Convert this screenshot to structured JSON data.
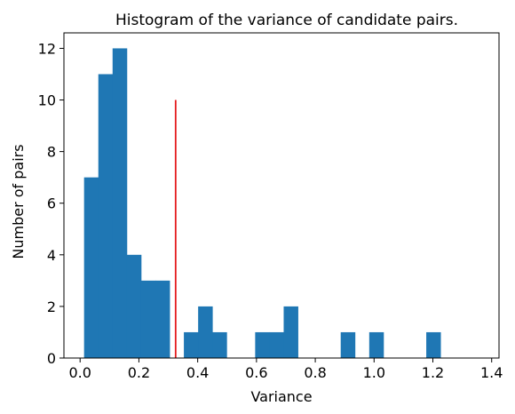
{
  "chart_data": {
    "type": "bar",
    "title": "Histogram of the variance of candidate pairs.",
    "xlabel": "Variance",
    "ylabel": "Number of pairs",
    "xlim": [
      -0.055,
      1.425
    ],
    "ylim": [
      0,
      12.6
    ],
    "grid": false,
    "bin_width": 0.0485,
    "bin_start": 0.0135,
    "counts": [
      7,
      11,
      12,
      4,
      3,
      3,
      0,
      1,
      2,
      1,
      0,
      0,
      1,
      1,
      2,
      0,
      0,
      0,
      1,
      0,
      1,
      0,
      0,
      0,
      1,
      0,
      0,
      0
    ],
    "threshold": {
      "x": 0.325,
      "y_max": 10,
      "color": "#e41a1c"
    },
    "bar_color": "#1f77b4",
    "x_ticks": [
      "0.0",
      "0.2",
      "0.4",
      "0.6",
      "0.8",
      "1.0",
      "1.2",
      "1.4"
    ],
    "x_tick_values": [
      0.0,
      0.2,
      0.4,
      0.6,
      0.8,
      1.0,
      1.2,
      1.4
    ],
    "y_ticks": [
      "0",
      "2",
      "4",
      "6",
      "8",
      "10",
      "12"
    ],
    "y_tick_values": [
      0,
      2,
      4,
      6,
      8,
      10,
      12
    ]
  }
}
